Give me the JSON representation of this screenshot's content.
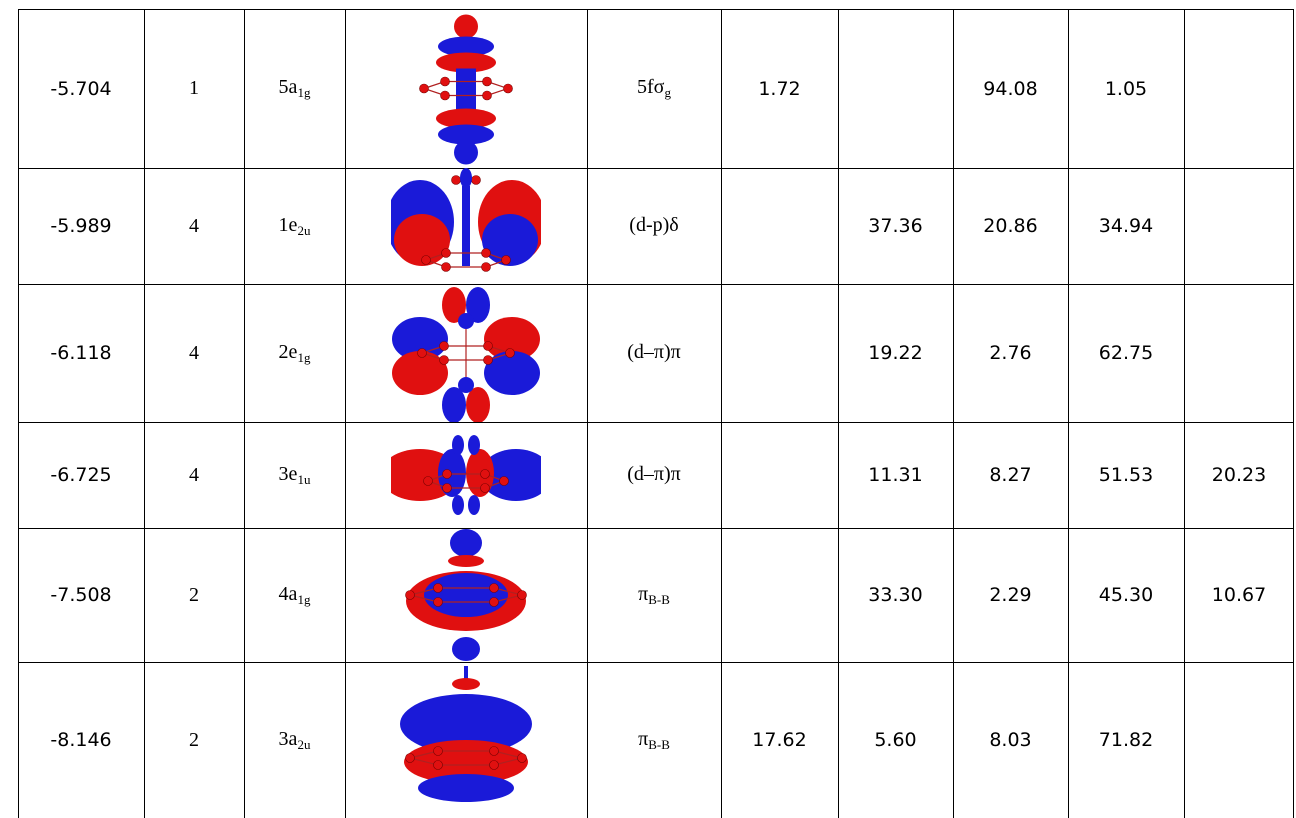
{
  "rows": [
    {
      "energy": "-5.704",
      "occ": "1",
      "mo_base": "5a",
      "mo_sub": "1g",
      "char_base": "5fσ",
      "char_sub": "g",
      "c1": "1.72",
      "c2": "",
      "c3": "94.08",
      "c4": "1.05",
      "c5": "",
      "orbital": "a1g-sigma"
    },
    {
      "energy": "-5.989",
      "occ": "4",
      "mo_base": "1e",
      "mo_sub": "2u",
      "char_base": "(d-p)δ",
      "char_sub": "",
      "c1": "",
      "c2": "37.36",
      "c3": "20.86",
      "c4": "34.94",
      "c5": "",
      "orbital": "e2u-delta"
    },
    {
      "energy": "-6.118",
      "occ": "4",
      "mo_base": "2e",
      "mo_sub": "1g",
      "char_base": "(d–π)π",
      "char_sub": "",
      "c1": "",
      "c2": "19.22",
      "c3": "2.76",
      "c4": "62.75",
      "c5": "",
      "orbital": "e1g-pi"
    },
    {
      "energy": "-6.725",
      "occ": "4",
      "mo_base": "3e",
      "mo_sub": "1u",
      "char_base": "(d–π)π",
      "char_sub": "",
      "c1": "",
      "c2": "11.31",
      "c3": "8.27",
      "c4": "51.53",
      "c5": "20.23",
      "orbital": "e1u-pi"
    },
    {
      "energy": "-7.508",
      "occ": "2",
      "mo_base": "4a",
      "mo_sub": "1g",
      "char_base": "π",
      "char_sub": "B-B",
      "c1": "",
      "c2": "33.30",
      "c3": "2.29",
      "c4": "45.30",
      "c5": "10.67",
      "orbital": "a1g-ring"
    },
    {
      "energy": "-8.146",
      "occ": "2",
      "mo_base": "3a",
      "mo_sub": "2u",
      "char_base": "π",
      "char_sub": "B-B",
      "c1": "17.62",
      "c2": "5.60",
      "c3": "8.03",
      "c4": "71.82",
      "c5": "",
      "orbital": "a2u-ring"
    }
  ],
  "colors": {
    "lobe_red": "#e01010",
    "lobe_blue": "#1a1ad8",
    "bond": "#b02020"
  }
}
